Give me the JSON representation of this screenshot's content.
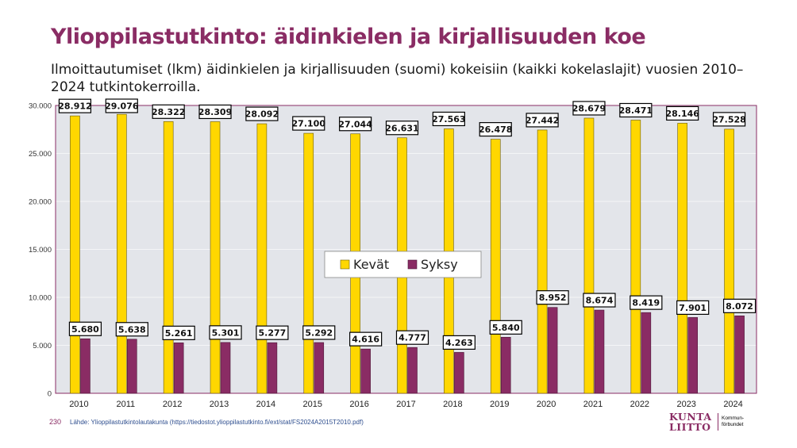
{
  "colors": {
    "accent": "#8a2c64",
    "kevat": "#ffd700",
    "syksy": "#8a2c64",
    "plot_bg": "#e3e5ea",
    "grid": "#f4f5f7"
  },
  "slide": {
    "title": "Ylioppilastutkinto: äidinkielen ja kirjallisuuden koe",
    "subtitle": "Ilmoittautumiset (lkm) äidinkielen ja kirjallisuuden (suomi) kokeisiin (kaikki kokelaslajit) vuosien 2010–2024 tutkintokerroilla.",
    "page_number": "230",
    "source": "Lähde: Ylioppilastutkintolautakunta (https://tiedostot.ylioppilastutkinto.fi/ext/stat/FS2024A2015T2010.pdf)"
  },
  "logo": {
    "line1": "KUNTA",
    "line2": "LIITTO",
    "small1": "Kommun-",
    "small2": "förbundet"
  },
  "chart_data": {
    "type": "bar",
    "title": "",
    "xlabel": "",
    "ylabel": "",
    "ylim": [
      0,
      30000
    ],
    "yticks": [
      0,
      5000,
      10000,
      15000,
      20000,
      25000,
      30000
    ],
    "ytick_labels": [
      "0",
      "5.000",
      "10.000",
      "15.000",
      "20.000",
      "25.000",
      "30.000"
    ],
    "grid": true,
    "legend_position": "center",
    "categories": [
      "2010",
      "2011",
      "2012",
      "2013",
      "2014",
      "2015",
      "2016",
      "2017",
      "2018",
      "2019",
      "2020",
      "2021",
      "2022",
      "2023",
      "2024"
    ],
    "series": [
      {
        "name": "Kevät",
        "values": [
          28912,
          29076,
          28322,
          28309,
          28092,
          27100,
          27044,
          26631,
          27563,
          26478,
          27442,
          28679,
          28471,
          28146,
          27528
        ],
        "labels": [
          "28.912",
          "29.076",
          "28.322",
          "28.309",
          "28.092",
          "27.100",
          "27.044",
          "26.631",
          "27.563",
          "26.478",
          "27.442",
          "28.679",
          "28.471",
          "28.146",
          "27.528"
        ]
      },
      {
        "name": "Syksy",
        "values": [
          5680,
          5638,
          5261,
          5301,
          5277,
          5292,
          4616,
          4777,
          4263,
          5840,
          8952,
          8674,
          8419,
          7901,
          8072
        ],
        "labels": [
          "5.680",
          "5.638",
          "5.261",
          "5.301",
          "5.277",
          "5.292",
          "4.616",
          "4.777",
          "4.263",
          "5.840",
          "8.952",
          "8.674",
          "8.419",
          "7.901",
          "8.072"
        ]
      }
    ]
  }
}
